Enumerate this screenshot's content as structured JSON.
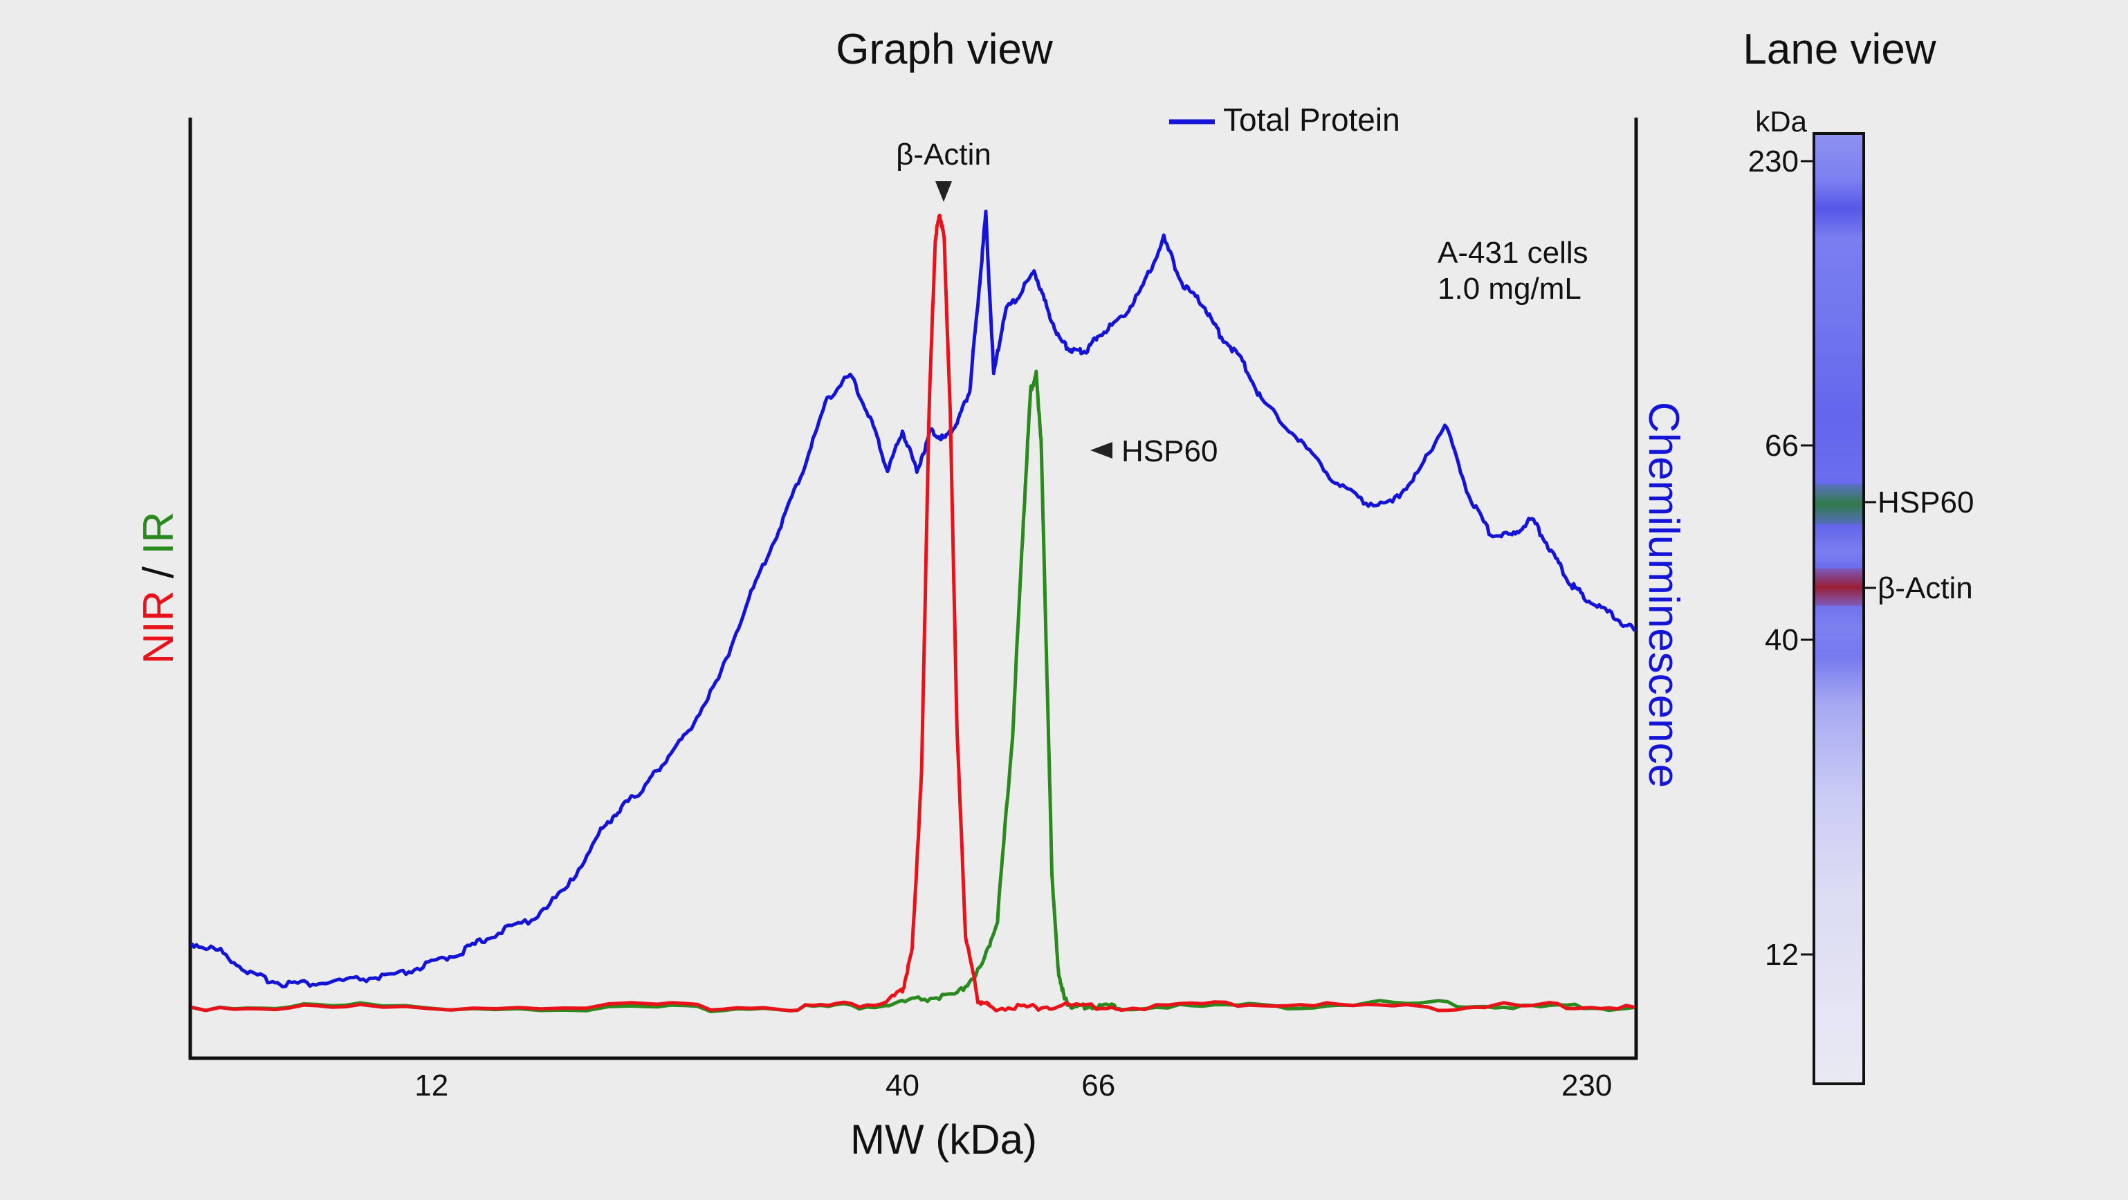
{
  "graph_title": "Graph view",
  "lane_title": "Lane view",
  "y_left_label": {
    "nir": "NIR",
    "sep": " / ",
    "ir": "IR"
  },
  "y_right_label": "Chemiluminescence",
  "x_label": "MW (kDa)",
  "legend": {
    "total_protein": "Total Protein"
  },
  "annotations": {
    "beta_actin": "β-Actin",
    "hsp60": "HSP60"
  },
  "sample_info": {
    "line1": "A-431 cells",
    "line2": "1.0 mg/mL"
  },
  "lane": {
    "unit": "kDa",
    "ticks": [
      "230",
      "66",
      "40",
      "12"
    ],
    "band_labels": {
      "hsp60": "HSP60",
      "beta_actin": "β-Actin"
    }
  },
  "colors": {
    "nir": "#e8131a",
    "ir": "#2a8a1e",
    "total_protein": "#1414d6",
    "axis": "#111111",
    "background": "#ececec"
  },
  "chart_data": {
    "type": "line",
    "title": "Graph view",
    "xlabel": "MW (kDa)",
    "ylabel_left": "NIR / IR",
    "ylabel_right": "Chemiluminescence",
    "x_scale": "log",
    "x_ticks": [
      12,
      40,
      66,
      230
    ],
    "x_tick_labels": [
      "12",
      "40",
      "66",
      "230"
    ],
    "xlim": [
      6.5,
      260
    ],
    "ylim": [
      0,
      1
    ],
    "grid": false,
    "legend_position": "top-center",
    "series": [
      {
        "name": "Total Protein",
        "color": "#1414d6",
        "x": [
          6.5,
          7.0,
          7.6,
          8.2,
          9.0,
          10.0,
          11.0,
          12.0,
          13.0,
          14.0,
          15.5,
          17.0,
          18.5,
          19.5,
          20.5,
          21.5,
          23.0,
          25.0,
          27.0,
          29.0,
          31.0,
          33.0,
          35.0,
          37.0,
          38.5,
          40.0,
          41.5,
          43.0,
          44.5,
          46.0,
          47.5,
          48.5,
          49.5,
          50.5,
          52.0,
          54.0,
          56.0,
          58.0,
          60.0,
          62.0,
          64.0,
          66.0,
          70.0,
          74.0,
          78.0,
          82.0,
          86.0,
          90.0,
          95.0,
          100.0,
          110.0,
          120.0,
          130.0,
          140.0,
          150.0,
          160.0,
          170.0,
          180.0,
          190.0,
          200.0,
          210.0,
          220.0,
          230.0,
          245.0,
          260.0
        ],
        "y": [
          0.09,
          0.08,
          0.05,
          0.04,
          0.04,
          0.045,
          0.05,
          0.065,
          0.08,
          0.1,
          0.12,
          0.16,
          0.23,
          0.26,
          0.28,
          0.31,
          0.35,
          0.42,
          0.52,
          0.6,
          0.68,
          0.77,
          0.8,
          0.74,
          0.68,
          0.73,
          0.68,
          0.73,
          0.72,
          0.74,
          0.78,
          0.89,
          1.0,
          0.8,
          0.88,
          0.9,
          0.93,
          0.88,
          0.84,
          0.83,
          0.83,
          0.85,
          0.87,
          0.91,
          0.97,
          0.91,
          0.89,
          0.85,
          0.82,
          0.77,
          0.72,
          0.67,
          0.64,
          0.64,
          0.68,
          0.74,
          0.65,
          0.6,
          0.6,
          0.62,
          0.58,
          0.54,
          0.52,
          0.5,
          0.48
        ]
      },
      {
        "name": "NIR",
        "color": "#e8131a",
        "x": [
          6.5,
          10.0,
          20.0,
          30.0,
          38.0,
          40.0,
          41.0,
          42.0,
          42.8,
          43.5,
          44.0,
          44.5,
          45.2,
          46.0,
          47.0,
          48.5,
          50.0,
          55.0,
          60.0,
          70.0,
          100.0,
          150.0,
          200.0,
          260.0
        ],
        "y": [
          0.01,
          0.01,
          0.012,
          0.01,
          0.015,
          0.03,
          0.08,
          0.3,
          0.75,
          0.97,
          1.0,
          0.97,
          0.75,
          0.35,
          0.1,
          0.02,
          0.01,
          0.01,
          0.012,
          0.01,
          0.015,
          0.01,
          0.012,
          0.01
        ]
      },
      {
        "name": "IR",
        "color": "#2a8a1e",
        "x": [
          6.5,
          10.0,
          20.0,
          30.0,
          38.0,
          42.0,
          46.0,
          49.0,
          51.0,
          53.0,
          54.5,
          55.5,
          56.3,
          57.0,
          57.8,
          58.6,
          59.5,
          60.5,
          62.0,
          65.0,
          70.0,
          100.0,
          150.0,
          200.0,
          260.0
        ],
        "y": [
          0.01,
          0.012,
          0.008,
          0.01,
          0.012,
          0.02,
          0.025,
          0.06,
          0.12,
          0.35,
          0.62,
          0.78,
          0.8,
          0.72,
          0.45,
          0.18,
          0.06,
          0.02,
          0.01,
          0.012,
          0.01,
          0.012,
          0.015,
          0.01,
          0.01
        ]
      }
    ],
    "arrows": [
      {
        "label": "β-Actin",
        "x": 44.0,
        "points": "down"
      },
      {
        "label": "HSP60",
        "x": 57.5,
        "points": "left"
      }
    ]
  }
}
